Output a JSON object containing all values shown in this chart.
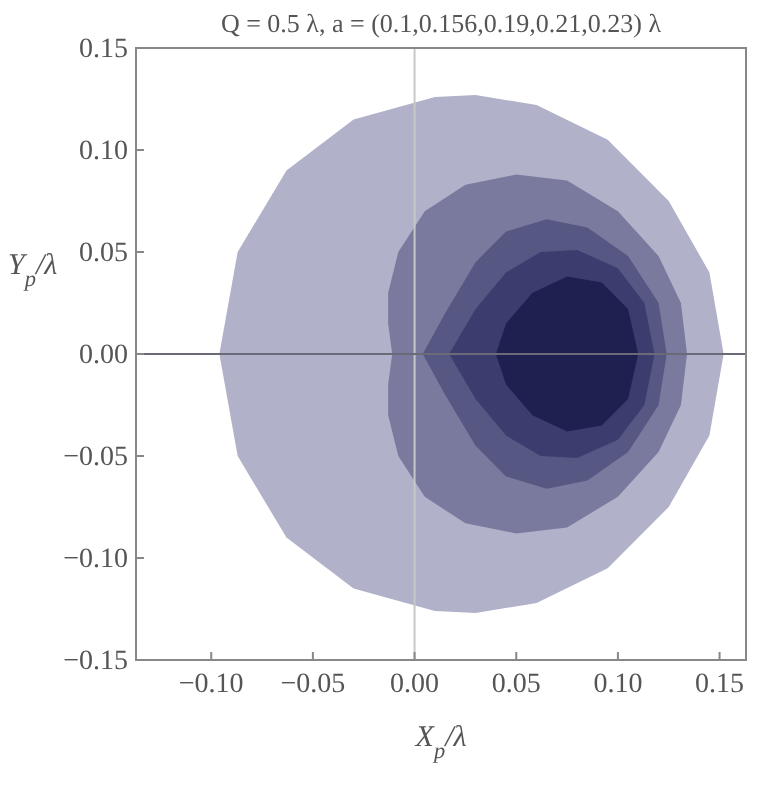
{
  "chart_data": {
    "type": "area",
    "title": "Q = 0.5 λ, a = (0.1,0.156,0.19,0.21,0.23) λ",
    "xlabel": "X$_{p}$/λ",
    "ylabel": "Y$_{p}$/λ",
    "xlim": [
      -0.137,
      0.163
    ],
    "ylim": [
      -0.15,
      0.15
    ],
    "xticks": [
      {
        "value": -0.1,
        "label": "−0.10"
      },
      {
        "value": -0.05,
        "label": "−0.05"
      },
      {
        "value": 0,
        "label": "0.00"
      },
      {
        "value": 0.05,
        "label": "0.05"
      },
      {
        "value": 0.1,
        "label": "0.10"
      },
      {
        "value": 0.15,
        "label": "0.15"
      }
    ],
    "yticks": [
      {
        "value": -0.15,
        "label": "−0.15"
      },
      {
        "value": -0.1,
        "label": "−0.10"
      },
      {
        "value": -0.05,
        "label": "−0.05"
      },
      {
        "value": 0,
        "label": "0.00"
      },
      {
        "value": 0.05,
        "label": "0.05"
      },
      {
        "value": 0.1,
        "label": "0.10"
      },
      {
        "value": 0.15,
        "label": "0.15"
      }
    ],
    "series": [
      {
        "color": "#b1b2c9",
        "x": [
          -0.096,
          -0.087,
          -0.063,
          -0.03,
          0.01,
          0.03,
          0.06,
          0.095,
          0.125,
          0.145,
          0.152,
          0.145,
          0.125,
          0.095,
          0.06,
          0.03,
          0.01,
          -0.03,
          -0.063,
          -0.087,
          -0.096
        ],
        "values": [
          0,
          0.05,
          0.09,
          0.115,
          0.126,
          0.127,
          0.122,
          0.105,
          0.075,
          0.04,
          0,
          -0.04,
          -0.075,
          -0.105,
          -0.122,
          -0.127,
          -0.126,
          -0.115,
          -0.09,
          -0.05,
          0
        ]
      },
      {
        "color": "#7a7a9f",
        "x": [
          -0.011,
          -0.013,
          -0.013,
          -0.008,
          0.005,
          0.025,
          0.05,
          0.075,
          0.1,
          0.12,
          0.131,
          0.134,
          0.131,
          0.12,
          0.1,
          0.075,
          0.05,
          0.025,
          0.005,
          -0.008,
          -0.013,
          -0.013,
          -0.011
        ],
        "values": [
          0,
          0.015,
          0.03,
          0.05,
          0.07,
          0.083,
          0.088,
          0.085,
          0.07,
          0.048,
          0.025,
          0,
          -0.025,
          -0.048,
          -0.07,
          -0.085,
          -0.088,
          -0.083,
          -0.07,
          -0.05,
          -0.03,
          -0.015,
          0
        ]
      },
      {
        "color": "#575783",
        "x": [
          0.004,
          0.015,
          0.03,
          0.045,
          0.065,
          0.085,
          0.105,
          0.12,
          0.124,
          0.12,
          0.105,
          0.085,
          0.065,
          0.045,
          0.03,
          0.015,
          0.004
        ],
        "values": [
          0,
          0.02,
          0.045,
          0.06,
          0.066,
          0.062,
          0.048,
          0.025,
          0,
          -0.025,
          -0.048,
          -0.062,
          -0.066,
          -0.06,
          -0.045,
          -0.02,
          0
        ]
      },
      {
        "color": "#3c3c6e",
        "x": [
          0.017,
          0.03,
          0.045,
          0.062,
          0.08,
          0.1,
          0.113,
          0.118,
          0.113,
          0.1,
          0.08,
          0.062,
          0.045,
          0.03,
          0.017
        ],
        "values": [
          0,
          0.022,
          0.04,
          0.05,
          0.051,
          0.042,
          0.025,
          0,
          -0.025,
          -0.042,
          -0.051,
          -0.05,
          -0.04,
          -0.022,
          0
        ]
      },
      {
        "color": "#1f1f50",
        "x": [
          0.04,
          0.045,
          0.058,
          0.075,
          0.092,
          0.105,
          0.11,
          0.105,
          0.092,
          0.075,
          0.058,
          0.045,
          0.04
        ],
        "values": [
          0,
          0.015,
          0.03,
          0.038,
          0.035,
          0.022,
          0,
          -0.022,
          -0.035,
          -0.038,
          -0.03,
          -0.015,
          0
        ]
      }
    ],
    "ref_lines": [
      {
        "axis": "x",
        "value": 0,
        "color": "#c8c8c8"
      },
      {
        "axis": "y",
        "value": 0,
        "color": "#6a6a78"
      }
    ]
  }
}
